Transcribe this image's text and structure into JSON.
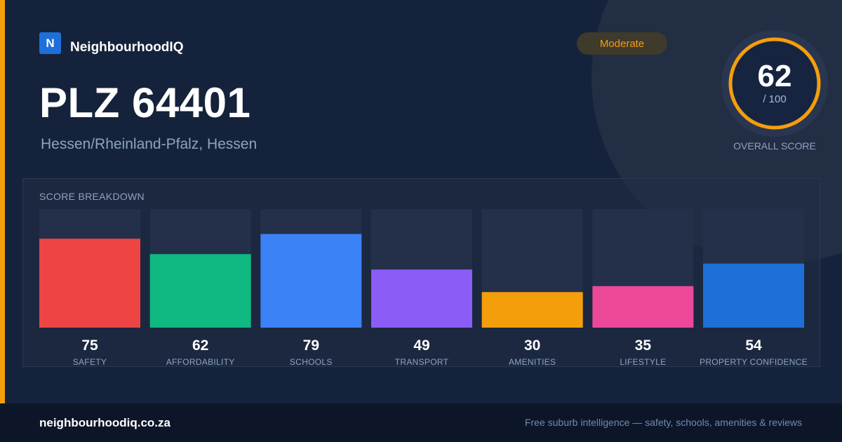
{
  "brand": {
    "logo_letter": "N",
    "name": "NeighbourhoodIQ"
  },
  "badge": {
    "label": "Moderate",
    "color": "#f59e0b"
  },
  "location": {
    "title": "PLZ 64401",
    "subtitle": "Hessen/Rheinland-Pfalz, Hessen"
  },
  "overall": {
    "score": "62",
    "max_label": "/ 100",
    "caption": "OVERALL SCORE",
    "fraction": 0.62,
    "ring_color": "#f59e0b"
  },
  "breakdown": {
    "title": "SCORE BREAKDOWN"
  },
  "chart_data": {
    "type": "bar",
    "categories": [
      "SAFETY",
      "AFFORDABILITY",
      "SCHOOLS",
      "TRANSPORT",
      "AMENITIES",
      "LIFESTYLE",
      "PROPERTY CONFIDENCE"
    ],
    "values": [
      75,
      62,
      79,
      49,
      30,
      35,
      54
    ],
    "colors": [
      "#ef4444",
      "#10b981",
      "#3b82f6",
      "#8b5cf6",
      "#f59e0b",
      "#ec4899",
      "#1f6fd9"
    ],
    "ylim": [
      0,
      100
    ]
  },
  "footer": {
    "url": "neighbourhoodiq.co.za",
    "tagline": "Free suburb intelligence — safety, schools, amenities & reviews"
  }
}
